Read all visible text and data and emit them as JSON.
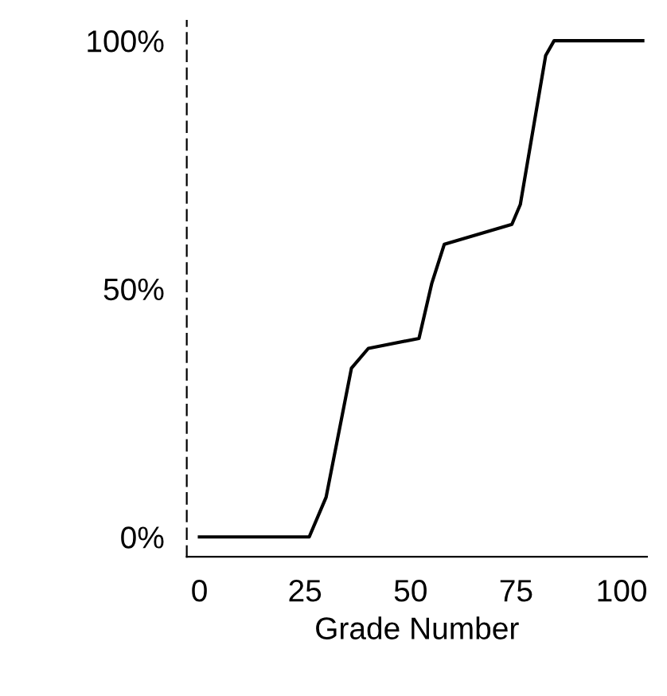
{
  "chart_data": {
    "type": "line",
    "xlabel": "Grade Number",
    "x": [
      0,
      26,
      30,
      36,
      40,
      52,
      55,
      58,
      74,
      76,
      82,
      84,
      105
    ],
    "series": [
      {
        "color": "#000000",
        "values": [
          0,
          0,
          8,
          34,
          38,
          40,
          51,
          59,
          63,
          67,
          97,
          100,
          100
        ]
      }
    ],
    "xlim": [
      -3,
      106
    ],
    "ylim": [
      -4,
      104
    ],
    "xticks": [
      0,
      25,
      50,
      75,
      100
    ],
    "yticks": [
      {
        "value": 0,
        "label": "0%"
      },
      {
        "value": 50,
        "label": "50%"
      },
      {
        "value": 100,
        "label": "100%"
      }
    ],
    "grid": false,
    "marker": "none",
    "line_style": "solid"
  }
}
